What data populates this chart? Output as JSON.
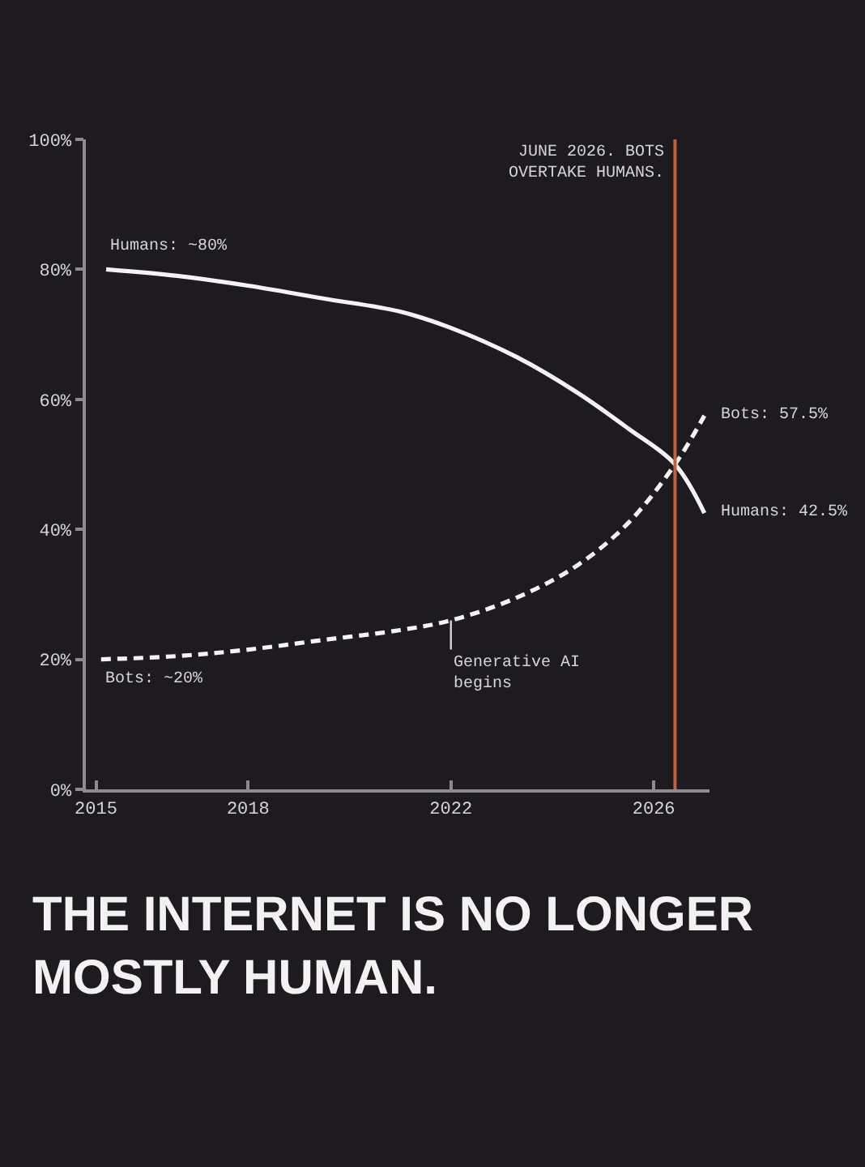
{
  "chart_data": {
    "type": "line",
    "title": "THE INTERNET IS NO LONGER\nMOSTLY HUMAN.",
    "xlim": [
      2014.8,
      2027.1
    ],
    "xticks": [
      2015,
      2018,
      2022,
      2026
    ],
    "ylim": [
      0,
      100
    ],
    "yticks": [
      {
        "value": 0,
        "label": "0%"
      },
      {
        "value": 20,
        "label": "20%"
      },
      {
        "value": 40,
        "label": "40%"
      },
      {
        "value": 60,
        "label": "60%"
      },
      {
        "value": 80,
        "label": "80%"
      },
      {
        "value": 100,
        "label": "100%"
      }
    ],
    "series": [
      {
        "color": "#f4f2f2",
        "line_style": "solid",
        "x": [
          2015.2,
          2016.6,
          2018,
          2019.5,
          2021,
          2022,
          2023.3,
          2024.5,
          2025.5,
          2026.42,
          2027
        ],
        "values": [
          80,
          79,
          77.5,
          75.5,
          73.5,
          71,
          66.5,
          61,
          55.5,
          50,
          42.5
        ]
      },
      {
        "color": "#f4f2f2",
        "line_style": "dashed",
        "x": [
          2015.1,
          2016.6,
          2018,
          2019.5,
          2021,
          2022,
          2023.3,
          2024.5,
          2025.5,
          2026.42,
          2027
        ],
        "values": [
          20,
          20.5,
          21.5,
          23,
          24.5,
          26,
          29.5,
          34.5,
          41,
          50,
          57.5
        ]
      }
    ],
    "ref_lines": [
      {
        "axis": "x",
        "value": 2026.42,
        "label": "JUNE 2026. BOTS\nOVERTAKE HUMANS.",
        "color": "#c0603f"
      }
    ],
    "annotations": [
      {
        "text": "Humans: ~80%",
        "x": 2015.2,
        "y": 80
      },
      {
        "text": "Bots: ~20%",
        "x": 2015.1,
        "y": 20
      },
      {
        "text": "Bots: 57.5%",
        "x": 2027,
        "y": 57.5
      },
      {
        "text": "Humans: 42.5%",
        "x": 2027,
        "y": 42.5
      },
      {
        "text": "Generative AI\nbegins",
        "x": 2022,
        "y": 26
      }
    ]
  }
}
